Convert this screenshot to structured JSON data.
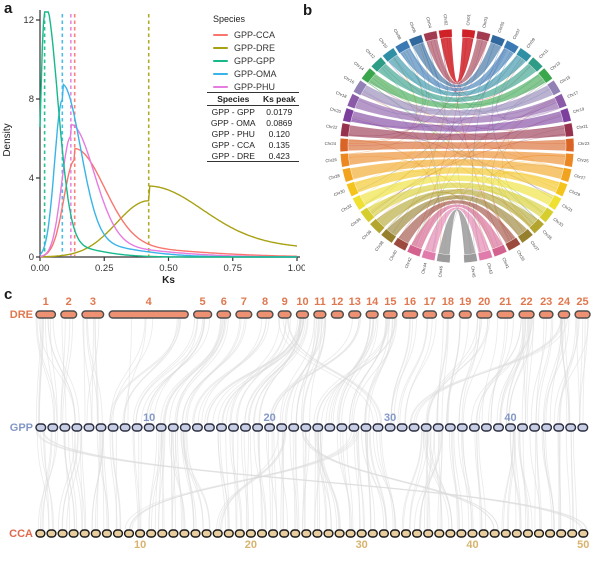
{
  "panels": {
    "a": "a",
    "b": "b",
    "c": "c"
  },
  "chart_data": {
    "type": "line",
    "title": "",
    "xlabel": "Ks",
    "ylabel": "Density",
    "xlim": [
      0,
      1.0
    ],
    "ylim": [
      0,
      12.5
    ],
    "xticks": [
      "0.00",
      "0.25",
      "0.50",
      "0.75",
      "1.00"
    ],
    "yticks": [
      "0",
      "4",
      "8",
      "12"
    ],
    "grid": false,
    "legend_position": "upper right",
    "series": [
      {
        "name": "GPP-CCA",
        "color": "#F8766D",
        "peak_x": 0.135,
        "peak_y": 4.9,
        "wl": 0.042,
        "wr": 0.115,
        "tail": 0.12
      },
      {
        "name": "GPP-DRE",
        "color": "#A8A213",
        "peak_x": 0.423,
        "peak_y": 2.85,
        "wl": 0.125,
        "wr": 0.205,
        "tail": 0.26
      },
      {
        "name": "GPP-GPP",
        "color": "#17B98A",
        "peak_x": 0.0179,
        "peak_y": 12.3,
        "wl": 0.016,
        "wr": 0.05,
        "tail": 0.06
      },
      {
        "name": "GPP-OMA",
        "color": "#39B4E8",
        "peak_x": 0.0869,
        "peak_y": 7.95,
        "wl": 0.03,
        "wr": 0.07,
        "tail": 0.1
      },
      {
        "name": "GPP-PHU",
        "color": "#E67BE0",
        "peak_x": 0.12,
        "peak_y": 6.1,
        "wl": 0.036,
        "wr": 0.09,
        "tail": 0.1
      }
    ],
    "peak_dashed_lines": [
      0.0179,
      0.0869,
      0.12,
      0.135,
      0.423
    ]
  },
  "panel_a": {
    "legend": {
      "title": "Species",
      "entries": [
        {
          "label": "GPP-CCA",
          "color": "#F8766D"
        },
        {
          "label": "GPP-DRE",
          "color": "#A8A213"
        },
        {
          "label": "GPP-GPP",
          "color": "#17B98A"
        },
        {
          "label": "GPP-OMA",
          "color": "#39B4E8"
        },
        {
          "label": "GPP-PHU",
          "color": "#E67BE0"
        }
      ]
    },
    "table": {
      "headers": [
        "Species",
        "Ks peak"
      ],
      "rows": [
        [
          "GPP - GPP",
          "0.0179"
        ],
        [
          "GPP - OMA",
          "0.0869"
        ],
        [
          "GPP - PHU",
          "0.120"
        ],
        [
          "GPP - CCA",
          "0.135"
        ],
        [
          "GPP - DRE",
          "0.423"
        ]
      ]
    }
  },
  "panel_b": {
    "chromosomes": [
      "Chr01",
      "Chr02",
      "Chr03",
      "Chr04",
      "Chr05",
      "Chr06",
      "Chr07",
      "Chr08",
      "Chr09",
      "Chr10",
      "Chr11",
      "Chr12",
      "Chr13",
      "Chr14",
      "Chr15",
      "Chr16",
      "Chr17",
      "Chr18",
      "Chr19",
      "Chr20",
      "Chr21",
      "Chr22",
      "Chr23",
      "Chr24",
      "Chr25",
      "Chr26",
      "Chr27",
      "Chr28",
      "Chr29",
      "Chr30",
      "Chr31",
      "Chr32",
      "Chr33",
      "Chr34",
      "Chr35",
      "Chr36",
      "Chr37",
      "Chr38",
      "Chr39",
      "Chr40",
      "Chr41",
      "Chr42",
      "Chr43",
      "Chr44",
      "Chr45",
      "Chr46"
    ],
    "pair_colors": [
      "#cf2127",
      "#a23a50",
      "#31699e",
      "#3a79b4",
      "#2e8fa5",
      "#2f9d85",
      "#3aa74d",
      "#9181b4",
      "#8a5aa8",
      "#7c3f9e",
      "#96314e",
      "#d96426",
      "#ec8722",
      "#f2a31d",
      "#f4c31c",
      "#efe032",
      "#d6ce2f",
      "#b3a52e",
      "#96802e",
      "#9c4a3e",
      "#d4628f",
      "#e07cab",
      "#9b9b9b"
    ]
  },
  "panel_c": {
    "ribbon_color": "#dcdcdc",
    "rows": [
      {
        "name": "DRE",
        "label_color": "#e0784f",
        "bar_fill": "#ee9173",
        "bar_border": "#4d4d4d",
        "count": 25,
        "number_color": "#e0784f",
        "numbers": [
          "1",
          "2",
          "3",
          "4",
          "5",
          "6",
          "7",
          "8",
          "9",
          "10",
          "11",
          "12",
          "13",
          "14",
          "15",
          "16",
          "17",
          "18",
          "19",
          "20",
          "21",
          "22",
          "23",
          "24",
          "25"
        ],
        "rel_sizes": [
          1.3,
          1.05,
          1.45,
          5.3,
          1.2,
          0.9,
          1.05,
          1.05,
          0.85,
          0.8,
          0.8,
          0.8,
          0.8,
          0.8,
          0.9,
          1.0,
          0.9,
          0.8,
          0.8,
          1.0,
          1.1,
          1.0,
          0.9,
          0.75,
          1.0
        ]
      },
      {
        "name": "GPP",
        "label_color": "#8498c6",
        "bar_fill": "#c7cde2",
        "bar_border": "#2b2e40",
        "count": 46,
        "number_color": "#8498c6",
        "ticks": [
          {
            "label": "10",
            "index": 9
          },
          {
            "label": "20",
            "index": 19
          },
          {
            "label": "30",
            "index": 29
          },
          {
            "label": "40",
            "index": 39
          }
        ]
      },
      {
        "name": "CCA",
        "label_color": "#e06a4c",
        "bar_fill": "#e8cd9f",
        "bar_border": "#1a1a1a",
        "count": 50,
        "number_color": "#d8b36e",
        "ticks": [
          {
            "label": "10",
            "index": 9
          },
          {
            "label": "20",
            "index": 19
          },
          {
            "label": "30",
            "index": 29
          },
          {
            "label": "40",
            "index": 39
          },
          {
            "label": "50",
            "index": 49
          }
        ]
      }
    ]
  }
}
